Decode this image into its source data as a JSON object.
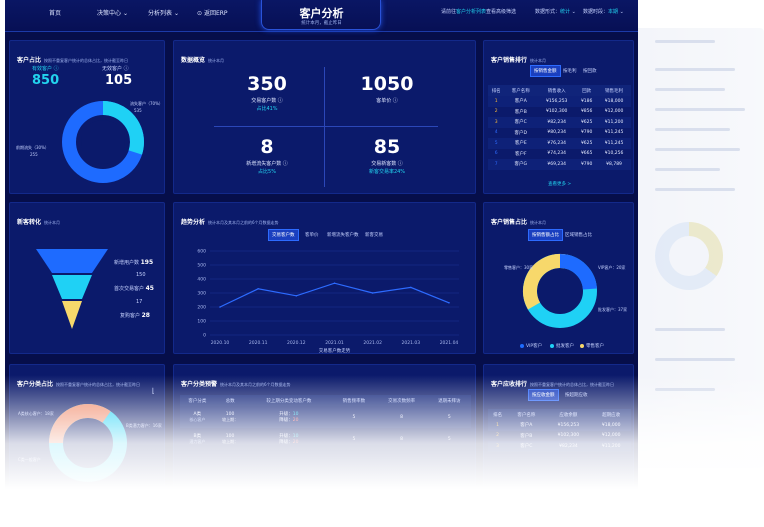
{
  "nav": {
    "home": "首页",
    "decision": "决策中心",
    "analysis": "分析列表",
    "back": "返回ERP"
  },
  "header": {
    "title": "客户分析",
    "subtitle": "统计本月，截止昨日",
    "welcome": "请前往",
    "welcome_link": "客户分析列表",
    "welcome_tail": "查看高级筛选",
    "method_label": "数据形式：",
    "method_value": "统计",
    "period_label": "数据时段：",
    "period_value": "本期"
  },
  "p1": {
    "title": "客户占比",
    "note": "按照不重复客户统计的总体占比，统计截至昨日",
    "valid_label": "有效客户",
    "valid_value": "850",
    "invalid_label": "无效客户",
    "invalid_value": "105",
    "churn_label": "流失客户（70%）",
    "churn_value": "535",
    "dormant_label": "前期流失（30%）",
    "dormant_value": "255",
    "segments": [
      70,
      30
    ]
  },
  "p2": {
    "title": "数据概览",
    "note": "统计本月",
    "items": [
      {
        "value": "350",
        "label": "交易客户数",
        "sub": "占比41%"
      },
      {
        "value": "1050",
        "label": "客单价",
        "sub": ""
      },
      {
        "value": "8",
        "label": "新增流失客户数",
        "sub": "占比5%"
      },
      {
        "value": "85",
        "label": "交易新客数",
        "sub": "新客交易率24%"
      }
    ]
  },
  "p3": {
    "title": "客户销售排行",
    "note": "统计本月",
    "tabs": [
      "按销售金额",
      "按毛利",
      "按回款"
    ],
    "headers": [
      "排名",
      "客户名称",
      "销售收入",
      "回款",
      "销售毛利"
    ],
    "rows": [
      [
        "1",
        "客户A",
        "¥156,253",
        "¥186",
        "¥18,000"
      ],
      [
        "2",
        "客户B",
        "¥102,300",
        "¥856",
        "¥12,000"
      ],
      [
        "3",
        "客户C",
        "¥82,234",
        "¥625",
        "¥11,200"
      ],
      [
        "4",
        "客户D",
        "¥80,234",
        "¥790",
        "¥11,245"
      ],
      [
        "5",
        "客户E",
        "¥76,234",
        "¥625",
        "¥11,245"
      ],
      [
        "6",
        "客户F",
        "¥74,234",
        "¥665",
        "¥10,256"
      ],
      [
        "7",
        "客户G",
        "¥69,234",
        "¥790",
        "¥8,789"
      ]
    ],
    "more": "查看更多 >"
  },
  "p4": {
    "title": "新客转化",
    "note": "统计本月",
    "stages": [
      {
        "label": "新增用户数",
        "value": "195"
      },
      {
        "label": "",
        "value": "150"
      },
      {
        "label": "首次交易客户",
        "value": "45"
      },
      {
        "label": "",
        "value": "17"
      },
      {
        "label": "复购客户",
        "value": "28"
      }
    ]
  },
  "p5": {
    "title": "趋势分析",
    "note": "统计本月及其本月之前的6个月数据走势",
    "tabs": [
      "交易客户数",
      "客单价",
      "新增流失客户数",
      "新客交易"
    ],
    "xlabel": "交易客户数走势"
  },
  "chart_data": {
    "type": "line",
    "x": [
      "2020.10",
      "2020.11",
      "2020.12",
      "2021.01",
      "2021.02",
      "2021.03",
      "2021.04"
    ],
    "ylim": [
      0,
      600
    ],
    "yticks": [
      "600",
      "500",
      "400",
      "300",
      "200",
      "100",
      "0"
    ],
    "series": [
      {
        "values": [
          200,
          330,
          280,
          370,
          300,
          340,
          230
        ]
      }
    ],
    "xlabel": "交易客户数走势"
  },
  "p6": {
    "title": "客户销售占比",
    "note": "统计本月",
    "tabs": [
      "按销售额占比",
      "区域销售占比"
    ],
    "vip": "VIP客户：20家",
    "retail": "零售客户：30家",
    "wholesale": "批发客户：37家",
    "legend": [
      "VIP客户",
      "批发客户",
      "零售客户"
    ]
  },
  "p7": {
    "title": "客户分类占比",
    "note": "按照不重复客户统计的总体占比，统计截至昨日",
    "a_label": "A类核心客户：18家",
    "b_label": "B类潜力客户：16家",
    "c_label": "C类一般客户"
  },
  "p8": {
    "title": "客户分类预警",
    "note": "统计本月及其本月之前的6个月数据走势",
    "headers": [
      "客户分类",
      "总数",
      "较上期分类变动客户数",
      "销售频率数",
      "交易次数频率",
      "退期未拜访"
    ],
    "rows": [
      {
        "cls": "A类",
        "sub": "核心客户",
        "total": "100",
        "total_sub": "较上期：",
        "up": "升级：",
        "up_v": "10",
        "down": "降级：",
        "down_v": "20",
        "f1": "5",
        "f2": "8",
        "f3": "5"
      },
      {
        "cls": "B类",
        "sub": "潜力客户",
        "total": "100",
        "total_sub": "较上期：",
        "up": "升级：",
        "up_v": "10",
        "down": "降级：",
        "down_v": "20",
        "f1": "5",
        "f2": "8",
        "f3": "5"
      }
    ]
  },
  "p9": {
    "title": "客户应收排行",
    "note": "按照不重复客户统计的总体占比，统计截至昨日",
    "tabs": [
      "按应收金额",
      "按超期应收"
    ],
    "headers": [
      "排名",
      "客户名称",
      "应收余额",
      "超期应收"
    ],
    "rows": [
      [
        "1",
        "客户A",
        "¥156,253",
        "¥18,000"
      ],
      [
        "2",
        "客户B",
        "¥102,300",
        "¥12,000"
      ],
      [
        "3",
        "客户C",
        "¥82,234",
        "¥11,200"
      ]
    ]
  }
}
